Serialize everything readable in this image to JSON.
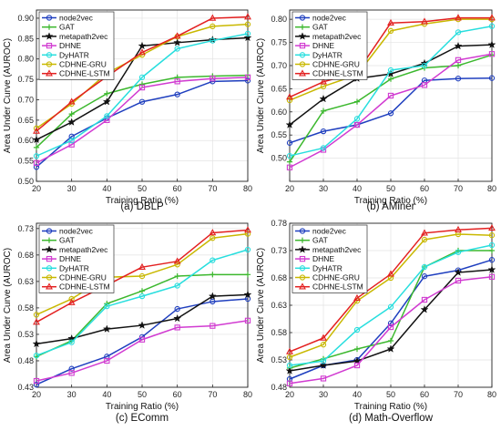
{
  "chart_data": [
    {
      "type": "line",
      "caption": "(a) DBLP",
      "xlabel": "Training Ratio (%)",
      "ylabel": "Area Under Curve (AUROC)",
      "x": [
        20,
        30,
        40,
        50,
        60,
        70,
        80
      ],
      "xlim": [
        20,
        80
      ],
      "ylim": [
        0.5,
        0.92
      ],
      "yticks": [
        0.5,
        0.55,
        0.6,
        0.65,
        0.7,
        0.75,
        0.8,
        0.85,
        0.9
      ],
      "legend_position": "top-left",
      "series": [
        {
          "name": "node2vec",
          "color": "#1f3fbf",
          "marker": "circle",
          "values": [
            0.535,
            0.61,
            0.655,
            0.695,
            0.713,
            0.745,
            0.747
          ]
        },
        {
          "name": "GAT",
          "color": "#3cb82e",
          "marker": "plus",
          "values": [
            0.583,
            0.665,
            0.715,
            0.738,
            0.755,
            0.758,
            0.76
          ]
        },
        {
          "name": "metapath2vec",
          "color": "#111111",
          "marker": "star",
          "values": [
            0.602,
            0.645,
            0.695,
            0.832,
            0.84,
            0.847,
            0.852
          ]
        },
        {
          "name": "DHNE",
          "color": "#d13bd1",
          "marker": "square",
          "values": [
            0.545,
            0.59,
            0.65,
            0.73,
            0.745,
            0.752,
            0.755
          ]
        },
        {
          "name": "DyHATR",
          "color": "#27dede",
          "marker": "circle",
          "values": [
            0.562,
            0.6,
            0.66,
            0.755,
            0.825,
            0.845,
            0.862
          ]
        },
        {
          "name": "CDHNE-GRU",
          "color": "#c9b800",
          "marker": "circle",
          "values": [
            0.63,
            0.69,
            0.765,
            0.81,
            0.855,
            0.88,
            0.885
          ]
        },
        {
          "name": "CDHNE-LSTM",
          "color": "#e32020",
          "marker": "triangle",
          "values": [
            0.623,
            0.695,
            0.757,
            0.816,
            0.856,
            0.9,
            0.903
          ]
        }
      ]
    },
    {
      "type": "line",
      "caption": "(b) AMiner",
      "xlabel": "Training Ratio (%)",
      "ylabel": "Area Under Curve (AUROC)",
      "x": [
        20,
        30,
        40,
        50,
        60,
        70,
        80
      ],
      "xlim": [
        20,
        80
      ],
      "ylim": [
        0.45,
        0.82
      ],
      "yticks": [
        0.5,
        0.55,
        0.6,
        0.65,
        0.7,
        0.75,
        0.8
      ],
      "legend_position": "top-left",
      "series": [
        {
          "name": "node2vec",
          "color": "#1f3fbf",
          "marker": "circle",
          "values": [
            0.533,
            0.558,
            0.572,
            0.597,
            0.668,
            0.672,
            0.673
          ]
        },
        {
          "name": "GAT",
          "color": "#3cb82e",
          "marker": "plus",
          "values": [
            0.492,
            0.602,
            0.622,
            0.671,
            0.695,
            0.7,
            0.723
          ]
        },
        {
          "name": "metapath2vec",
          "color": "#111111",
          "marker": "star",
          "values": [
            0.572,
            0.628,
            0.672,
            0.682,
            0.705,
            0.742,
            0.745
          ]
        },
        {
          "name": "DHNE",
          "color": "#d13bd1",
          "marker": "square",
          "values": [
            0.48,
            0.518,
            0.572,
            0.635,
            0.658,
            0.712,
            0.725
          ]
        },
        {
          "name": "DyHATR",
          "color": "#27dede",
          "marker": "circle",
          "values": [
            0.505,
            0.522,
            0.585,
            0.69,
            0.7,
            0.772,
            0.785
          ]
        },
        {
          "name": "CDHNE-GRU",
          "color": "#c9b800",
          "marker": "circle",
          "values": [
            0.625,
            0.655,
            0.68,
            0.775,
            0.79,
            0.8,
            0.8
          ]
        },
        {
          "name": "CDHNE-LSTM",
          "color": "#e32020",
          "marker": "triangle",
          "values": [
            0.632,
            0.665,
            0.685,
            0.792,
            0.795,
            0.803,
            0.803
          ]
        }
      ]
    },
    {
      "type": "line",
      "caption": "(c) EComm",
      "xlabel": "Training Ratio (%)",
      "ylabel": "Area Under Curve (AUROC)",
      "x": [
        20,
        30,
        40,
        50,
        60,
        70,
        80
      ],
      "xlim": [
        20,
        80
      ],
      "ylim": [
        0.43,
        0.74
      ],
      "yticks": [
        0.43,
        0.48,
        0.53,
        0.58,
        0.63,
        0.68,
        0.73
      ],
      "legend_position": "top-left",
      "series": [
        {
          "name": "node2vec",
          "color": "#1f3fbf",
          "marker": "circle",
          "values": [
            0.435,
            0.465,
            0.488,
            0.525,
            0.578,
            0.592,
            0.597
          ]
        },
        {
          "name": "GAT",
          "color": "#3cb82e",
          "marker": "plus",
          "values": [
            0.488,
            0.518,
            0.588,
            0.612,
            0.64,
            0.643,
            0.643
          ]
        },
        {
          "name": "metapath2vec",
          "color": "#111111",
          "marker": "star",
          "values": [
            0.512,
            0.522,
            0.54,
            0.547,
            0.56,
            0.602,
            0.605
          ]
        },
        {
          "name": "DHNE",
          "color": "#d13bd1",
          "marker": "square",
          "values": [
            0.442,
            0.457,
            0.48,
            0.52,
            0.543,
            0.546,
            0.556
          ]
        },
        {
          "name": "DyHATR",
          "color": "#27dede",
          "marker": "circle",
          "values": [
            0.49,
            0.515,
            0.583,
            0.602,
            0.622,
            0.67,
            0.69
          ]
        },
        {
          "name": "CDHNE-GRU",
          "color": "#c9b800",
          "marker": "circle",
          "values": [
            0.567,
            0.597,
            0.638,
            0.64,
            0.662,
            0.712,
            0.72
          ]
        },
        {
          "name": "CDHNE-LSTM",
          "color": "#e32020",
          "marker": "triangle",
          "values": [
            0.553,
            0.59,
            0.623,
            0.657,
            0.668,
            0.722,
            0.727
          ]
        }
      ]
    },
    {
      "type": "line",
      "caption": "(d) Math-Overflow",
      "xlabel": "Training Ratio (%)",
      "ylabel": "Area Under Curve (AUROC)",
      "x": [
        20,
        30,
        40,
        50,
        60,
        70,
        80
      ],
      "xlim": [
        20,
        80
      ],
      "ylim": [
        0.48,
        0.78
      ],
      "yticks": [
        0.48,
        0.53,
        0.58,
        0.63,
        0.68,
        0.73,
        0.78
      ],
      "legend_position": "top-left",
      "series": [
        {
          "name": "node2vec",
          "color": "#1f3fbf",
          "marker": "circle",
          "values": [
            0.495,
            0.52,
            0.53,
            0.597,
            0.683,
            0.694,
            0.713
          ]
        },
        {
          "name": "GAT",
          "color": "#3cb82e",
          "marker": "plus",
          "values": [
            0.515,
            0.532,
            0.55,
            0.565,
            0.7,
            0.73,
            0.73
          ]
        },
        {
          "name": "metapath2vec",
          "color": "#111111",
          "marker": "star",
          "values": [
            0.51,
            0.52,
            0.528,
            0.55,
            0.622,
            0.69,
            0.695
          ]
        },
        {
          "name": "DHNE",
          "color": "#d13bd1",
          "marker": "square",
          "values": [
            0.487,
            0.496,
            0.52,
            0.59,
            0.64,
            0.675,
            0.682
          ]
        },
        {
          "name": "DyHATR",
          "color": "#27dede",
          "marker": "circle",
          "values": [
            0.52,
            0.528,
            0.585,
            0.627,
            0.7,
            0.727,
            0.74
          ]
        },
        {
          "name": "CDHNE-GRU",
          "color": "#c9b800",
          "marker": "circle",
          "values": [
            0.535,
            0.558,
            0.638,
            0.68,
            0.75,
            0.76,
            0.758
          ]
        },
        {
          "name": "CDHNE-LSTM",
          "color": "#e32020",
          "marker": "triangle",
          "values": [
            0.545,
            0.57,
            0.643,
            0.687,
            0.762,
            0.768,
            0.771
          ]
        }
      ]
    }
  ]
}
